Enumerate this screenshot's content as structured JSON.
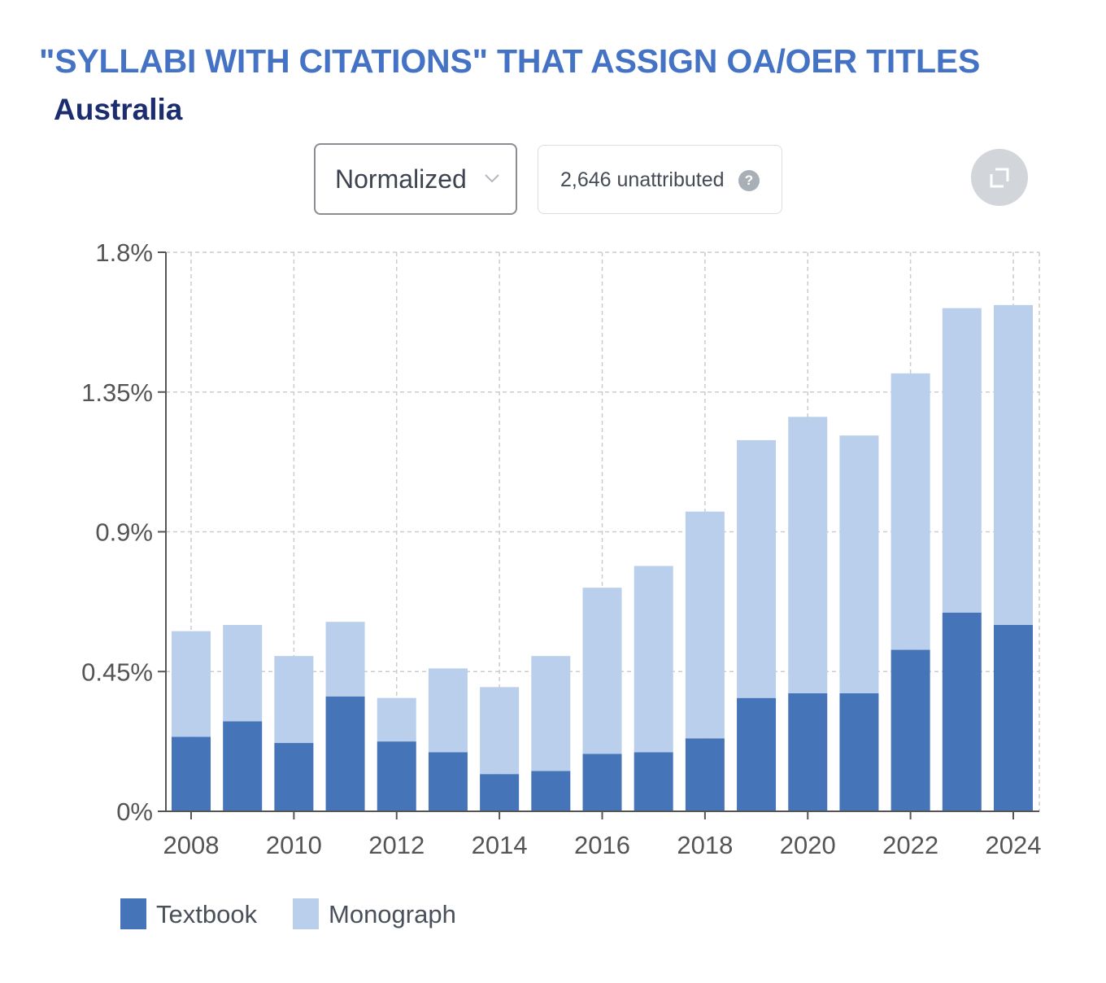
{
  "header": {
    "title": "\"SYLLABI WITH CITATIONS\" THAT ASSIGN OA/OER TITLES",
    "subtitle": "Australia"
  },
  "controls": {
    "mode_dropdown": {
      "selected": "Normalized",
      "icon": "chevron-down-icon"
    },
    "unattributed": {
      "label": "2,646 unattributed",
      "icon": "help-icon",
      "icon_glyph": "?"
    },
    "expand_button": {
      "icon": "expand-icon"
    }
  },
  "colors": {
    "textbook": "#4674b8",
    "monograph": "#bacfeb",
    "grid": "#cccccc",
    "axis": "#555555",
    "tick_text": "#555555"
  },
  "chart_data": {
    "type": "bar",
    "stacked": true,
    "x": [
      2008,
      2009,
      2010,
      2011,
      2012,
      2013,
      2014,
      2015,
      2016,
      2017,
      2018,
      2019,
      2020,
      2021,
      2022,
      2023,
      2024
    ],
    "series": [
      {
        "name": "Textbook",
        "values": [
          0.24,
          0.29,
          0.22,
          0.37,
          0.225,
          0.19,
          0.12,
          0.13,
          0.185,
          0.19,
          0.235,
          0.365,
          0.38,
          0.38,
          0.52,
          0.64,
          0.6
        ]
      },
      {
        "name": "Monograph",
        "values": [
          0.34,
          0.31,
          0.28,
          0.24,
          0.14,
          0.27,
          0.28,
          0.37,
          0.535,
          0.6,
          0.73,
          0.83,
          0.89,
          0.83,
          0.89,
          0.98,
          1.03
        ]
      }
    ],
    "y_ticks": [
      "0%",
      "0.45%",
      "0.9%",
      "1.35%",
      "1.8%"
    ],
    "y_tick_values": [
      0,
      0.45,
      0.9,
      1.35,
      1.8
    ],
    "x_tick_labels": [
      "2008",
      "2010",
      "2012",
      "2014",
      "2016",
      "2018",
      "2020",
      "2022",
      "2024"
    ],
    "ylim": [
      0,
      1.8
    ],
    "grid": true,
    "legend": {
      "position": "bottom-left",
      "entries": [
        "Textbook",
        "Monograph"
      ]
    },
    "xlabel": "",
    "ylabel": ""
  }
}
